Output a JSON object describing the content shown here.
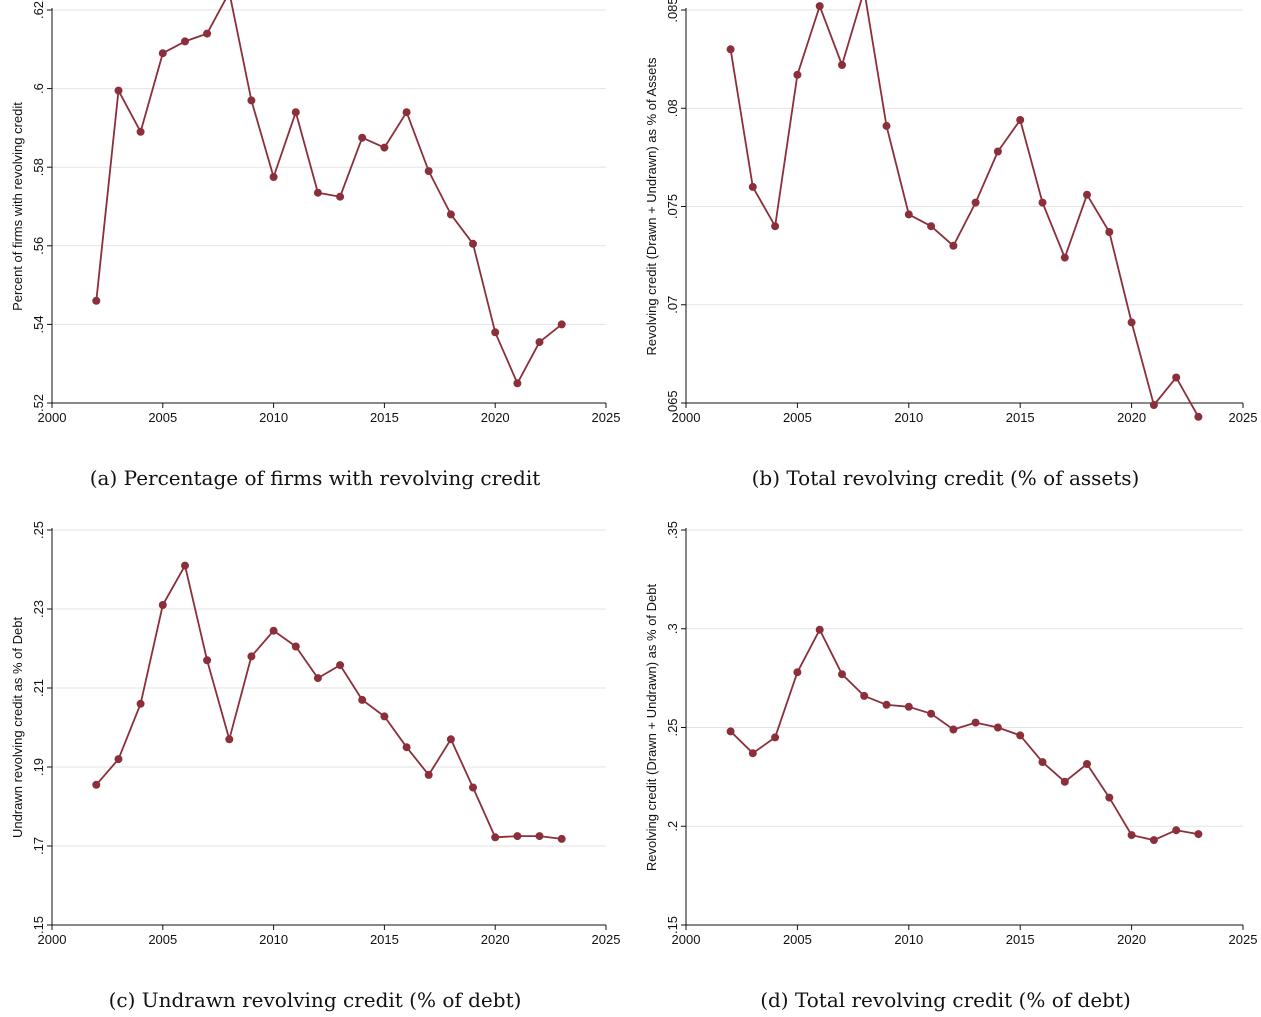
{
  "series_color": "#8b2f3a",
  "chart_data": [
    {
      "id": "a",
      "type": "line",
      "caption": "(a) Percentage of firms with revolving credit",
      "ylabel": "Percent of firms with revolving credit",
      "xlim": [
        2000,
        2025
      ],
      "ylim": [
        0.52,
        0.62
      ],
      "grid": true,
      "xticks": [
        2000,
        2005,
        2010,
        2015,
        2020,
        2025
      ],
      "xtick_labels": [
        "2000",
        "2005",
        "2010",
        "2015",
        "2020",
        "2025"
      ],
      "yticks": [
        0.52,
        0.54,
        0.56,
        0.58,
        0.6,
        0.62
      ],
      "ytick_labels": [
        ".52",
        ".54",
        ".56",
        ".58",
        ".6",
        ".62"
      ],
      "x": [
        2002,
        2003,
        2004,
        2005,
        2006,
        2007,
        2008,
        2009,
        2010,
        2011,
        2012,
        2013,
        2014,
        2015,
        2016,
        2017,
        2018,
        2019,
        2020,
        2021,
        2022,
        2023
      ],
      "y": [
        0.546,
        0.5995,
        0.589,
        0.609,
        0.612,
        0.614,
        0.6245,
        0.597,
        0.5775,
        0.594,
        0.5735,
        0.5725,
        0.5875,
        0.585,
        0.594,
        0.579,
        0.568,
        0.5605,
        0.538,
        0.525,
        0.5355,
        0.54
      ]
    },
    {
      "id": "b",
      "type": "line",
      "caption": "(b) Total revolving credit (% of assets)",
      "ylabel": "Revolving credit (Drawn + Undrawn) as % of Assets",
      "xlim": [
        2000,
        2025
      ],
      "ylim": [
        0.065,
        0.085
      ],
      "grid": true,
      "xticks": [
        2000,
        2005,
        2010,
        2015,
        2020,
        2025
      ],
      "xtick_labels": [
        "2000",
        "2005",
        "2010",
        "2015",
        "2020",
        "2025"
      ],
      "yticks": [
        0.065,
        0.07,
        0.075,
        0.08,
        0.085
      ],
      "ytick_labels": [
        ".065",
        ".07",
        ".075",
        ".08",
        ".085"
      ],
      "x": [
        2002,
        2003,
        2004,
        2005,
        2006,
        2007,
        2008,
        2009,
        2010,
        2011,
        2012,
        2013,
        2014,
        2015,
        2016,
        2017,
        2018,
        2019,
        2020,
        2021,
        2022,
        2023
      ],
      "y": [
        0.083,
        0.076,
        0.074,
        0.0817,
        0.0852,
        0.0822,
        0.086,
        0.0791,
        0.0746,
        0.074,
        0.073,
        0.0752,
        0.0778,
        0.0794,
        0.0752,
        0.0724,
        0.0756,
        0.0737,
        0.0691,
        0.0649,
        0.0663,
        0.0643
      ]
    },
    {
      "id": "c",
      "type": "line",
      "caption": "(c) Undrawn revolving credit (% of debt)",
      "ylabel": "Undrawn revolving credit as % of Debt",
      "xlim": [
        2000,
        2025
      ],
      "ylim": [
        0.15,
        0.25
      ],
      "grid": true,
      "xticks": [
        2000,
        2005,
        2010,
        2015,
        2020,
        2025
      ],
      "xtick_labels": [
        "2000",
        "2005",
        "2010",
        "2015",
        "2020",
        "2025"
      ],
      "yticks": [
        0.15,
        0.17,
        0.19,
        0.21,
        0.23,
        0.25
      ],
      "ytick_labels": [
        ".15",
        ".17",
        ".19",
        ".21",
        ".23",
        ".25"
      ],
      "x": [
        2002,
        2003,
        2004,
        2005,
        2006,
        2007,
        2008,
        2009,
        2010,
        2011,
        2012,
        2013,
        2014,
        2015,
        2016,
        2017,
        2018,
        2019,
        2020,
        2021,
        2022,
        2023
      ],
      "y": [
        0.1855,
        0.192,
        0.206,
        0.231,
        0.241,
        0.217,
        0.197,
        0.218,
        0.2245,
        0.2205,
        0.2125,
        0.2158,
        0.207,
        0.2028,
        0.195,
        0.188,
        0.197,
        0.1848,
        0.1722,
        0.1725,
        0.1725,
        0.1718
      ]
    },
    {
      "id": "d",
      "type": "line",
      "caption": "(d) Total revolving credit (% of debt)",
      "ylabel": "Revolving credit (Drawn + Undrawn) as % of Debt",
      "xlim": [
        2000,
        2025
      ],
      "ylim": [
        0.15,
        0.35
      ],
      "grid": true,
      "xticks": [
        2000,
        2005,
        2010,
        2015,
        2020,
        2025
      ],
      "xtick_labels": [
        "2000",
        "2005",
        "2010",
        "2015",
        "2020",
        "2025"
      ],
      "yticks": [
        0.15,
        0.2,
        0.25,
        0.3,
        0.35
      ],
      "ytick_labels": [
        ".15",
        ".2",
        ".25",
        ".3",
        ".35"
      ],
      "x": [
        2002,
        2003,
        2004,
        2005,
        2006,
        2007,
        2008,
        2009,
        2010,
        2011,
        2012,
        2013,
        2014,
        2015,
        2016,
        2017,
        2018,
        2019,
        2020,
        2021,
        2022,
        2023
      ],
      "y": [
        0.248,
        0.237,
        0.245,
        0.278,
        0.2995,
        0.277,
        0.266,
        0.2615,
        0.2605,
        0.257,
        0.249,
        0.2525,
        0.25,
        0.246,
        0.2325,
        0.2225,
        0.2315,
        0.2145,
        0.1955,
        0.193,
        0.198,
        0.196
      ]
    }
  ]
}
